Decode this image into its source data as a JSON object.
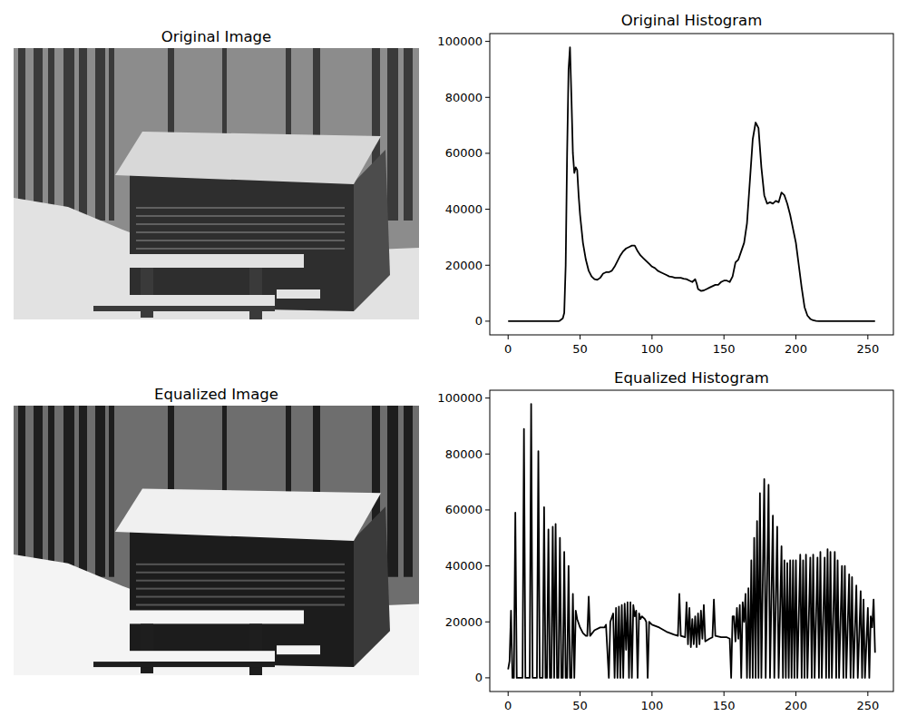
{
  "chart_data": [
    {
      "type": "image",
      "title": "Original Image"
    },
    {
      "type": "line",
      "title": "Original Histogram",
      "x": [
        0,
        35,
        36,
        38,
        39,
        40,
        41,
        42,
        43,
        44,
        45,
        46,
        47,
        48,
        49,
        50,
        52,
        54,
        56,
        58,
        60,
        62,
        64,
        66,
        68,
        70,
        72,
        74,
        76,
        78,
        80,
        82,
        84,
        86,
        88,
        90,
        92,
        94,
        96,
        98,
        100,
        102,
        104,
        106,
        108,
        110,
        112,
        114,
        116,
        118,
        120,
        122,
        124,
        126,
        128,
        130,
        131,
        132,
        134,
        136,
        138,
        140,
        142,
        144,
        146,
        148,
        150,
        152,
        154,
        156,
        158,
        160,
        162,
        164,
        166,
        168,
        170,
        172,
        174,
        176,
        178,
        180,
        182,
        184,
        186,
        188,
        190,
        192,
        194,
        196,
        198,
        200,
        202,
        204,
        206,
        208,
        210,
        212,
        214,
        216,
        255
      ],
      "values": [
        0,
        0,
        200,
        1000,
        3000,
        20000,
        60000,
        90000,
        97900,
        80000,
        60000,
        53000,
        55000,
        54000,
        45000,
        38000,
        28000,
        22000,
        18000,
        16000,
        15000,
        14800,
        15500,
        17000,
        17500,
        17500,
        18000,
        19500,
        21500,
        23500,
        25000,
        26000,
        26500,
        27000,
        27000,
        25000,
        23500,
        22500,
        21500,
        20500,
        19500,
        19000,
        18000,
        17500,
        17000,
        16500,
        16000,
        15800,
        15500,
        15500,
        15500,
        15200,
        15000,
        14500,
        14000,
        15000,
        13500,
        11500,
        10800,
        11000,
        11500,
        12000,
        12500,
        13000,
        13000,
        14000,
        14500,
        14500,
        14000,
        16000,
        21000,
        22000,
        25000,
        28000,
        35000,
        50000,
        65000,
        71000,
        69000,
        55000,
        45000,
        42000,
        42500,
        42000,
        43000,
        42500,
        46000,
        45000,
        42000,
        38000,
        33000,
        28000,
        20000,
        12000,
        5000,
        2000,
        800,
        300,
        100,
        0,
        0
      ],
      "color": "#000000",
      "xlim": [
        -12.75,
        267.75
      ],
      "ylim": [
        -4895,
        102795
      ],
      "xticks": [
        0,
        50,
        100,
        150,
        200,
        250
      ],
      "yticks": [
        0,
        20000,
        40000,
        60000,
        80000,
        100000
      ],
      "grid": false
    },
    {
      "type": "image",
      "title": "Equalized Image"
    },
    {
      "type": "line",
      "title": "Equalized Histogram",
      "x": [
        0,
        1,
        2,
        3,
        4,
        5,
        6,
        10,
        11,
        12,
        15,
        16,
        17,
        20,
        21,
        22,
        24,
        25,
        26,
        27,
        28,
        29,
        30,
        31,
        32,
        33,
        34,
        35,
        36,
        37,
        38,
        39,
        40,
        41,
        42,
        43,
        44,
        45,
        46,
        47,
        48,
        50,
        52,
        54,
        55,
        56,
        57,
        60,
        64,
        67,
        68,
        70,
        71,
        73,
        74,
        75,
        76,
        77,
        78,
        79,
        80,
        81,
        82,
        83,
        84,
        85,
        86,
        87,
        88,
        89,
        90,
        91,
        92,
        93,
        95,
        96,
        97,
        98,
        100,
        105,
        110,
        115,
        118,
        119,
        120,
        123,
        124,
        125,
        126,
        127,
        128,
        129,
        130,
        131,
        132,
        133,
        134,
        135,
        136,
        137,
        140,
        142,
        143,
        144,
        148,
        152,
        154,
        155,
        156,
        157,
        158,
        159,
        160,
        161,
        162,
        163,
        164,
        165,
        166,
        167,
        168,
        169,
        170,
        171,
        172,
        173,
        174,
        175,
        176,
        178,
        179,
        181,
        182,
        184,
        185,
        187,
        188,
        190,
        191,
        192,
        193,
        194,
        195,
        196,
        197,
        198,
        199,
        200,
        201,
        203,
        204,
        205,
        206,
        207,
        208,
        210,
        211,
        212,
        213,
        215,
        216,
        217,
        218,
        220,
        221,
        222,
        223,
        224,
        225,
        227,
        228,
        229,
        230,
        232,
        233,
        234,
        235,
        237,
        238,
        239,
        240,
        242,
        243,
        245,
        246,
        247,
        248,
        250,
        251,
        252,
        253,
        254,
        255
      ],
      "values": [
        3000,
        6000,
        24000,
        0,
        0,
        59000,
        0,
        0,
        89000,
        0,
        0,
        97900,
        0,
        0,
        81000,
        0,
        0,
        61000,
        0,
        0,
        53000,
        0,
        0,
        54000,
        0,
        55000,
        0,
        0,
        50000,
        0,
        0,
        45000,
        0,
        0,
        40000,
        0,
        0,
        30000,
        0,
        24000,
        21000,
        18000,
        16000,
        15000,
        15000,
        29000,
        15000,
        17000,
        18000,
        18000,
        19000,
        0,
        20000,
        23000,
        0,
        25000,
        0,
        25500,
        0,
        26000,
        0,
        26500,
        10000,
        27000,
        0,
        27000,
        0,
        26000,
        22000,
        24000,
        0,
        23000,
        21000,
        22000,
        21000,
        20000,
        0,
        20000,
        19000,
        18000,
        16500,
        15500,
        15000,
        30000,
        15000,
        14500,
        27000,
        12000,
        25000,
        11000,
        21000,
        12000,
        22000,
        11000,
        23000,
        12000,
        24000,
        14000,
        26000,
        13000,
        14000,
        14500,
        28000,
        15000,
        14500,
        14500,
        14000,
        0,
        22000,
        22000,
        13000,
        25000,
        14000,
        26000,
        0,
        27000,
        20000,
        30000,
        0,
        32000,
        0,
        42000,
        0,
        50000,
        0,
        56000,
        0,
        66000,
        0,
        71000,
        0,
        69000,
        0,
        58000,
        0,
        54000,
        0,
        47000,
        0,
        42000,
        0,
        41000,
        0,
        42000,
        0,
        42000,
        0,
        42000,
        0,
        44000,
        0,
        42000,
        0,
        44000,
        0,
        43000,
        0,
        44000,
        0,
        43000,
        0,
        45000,
        0,
        43000,
        0,
        46000,
        0,
        45000,
        0,
        45000,
        0,
        42000,
        0,
        40000,
        0,
        40000,
        0,
        37000,
        0,
        36000,
        0,
        33000,
        0,
        31000,
        0,
        28000,
        0,
        25000,
        0,
        22000,
        18000,
        28000,
        9000
      ],
      "color": "#000000",
      "xlim": [
        -12.75,
        267.75
      ],
      "ylim": [
        -4895,
        102795
      ],
      "xticks": [
        0,
        50,
        100,
        150,
        200,
        250
      ],
      "yticks": [
        0,
        20000,
        40000,
        60000,
        80000,
        100000
      ],
      "grid": false
    }
  ]
}
